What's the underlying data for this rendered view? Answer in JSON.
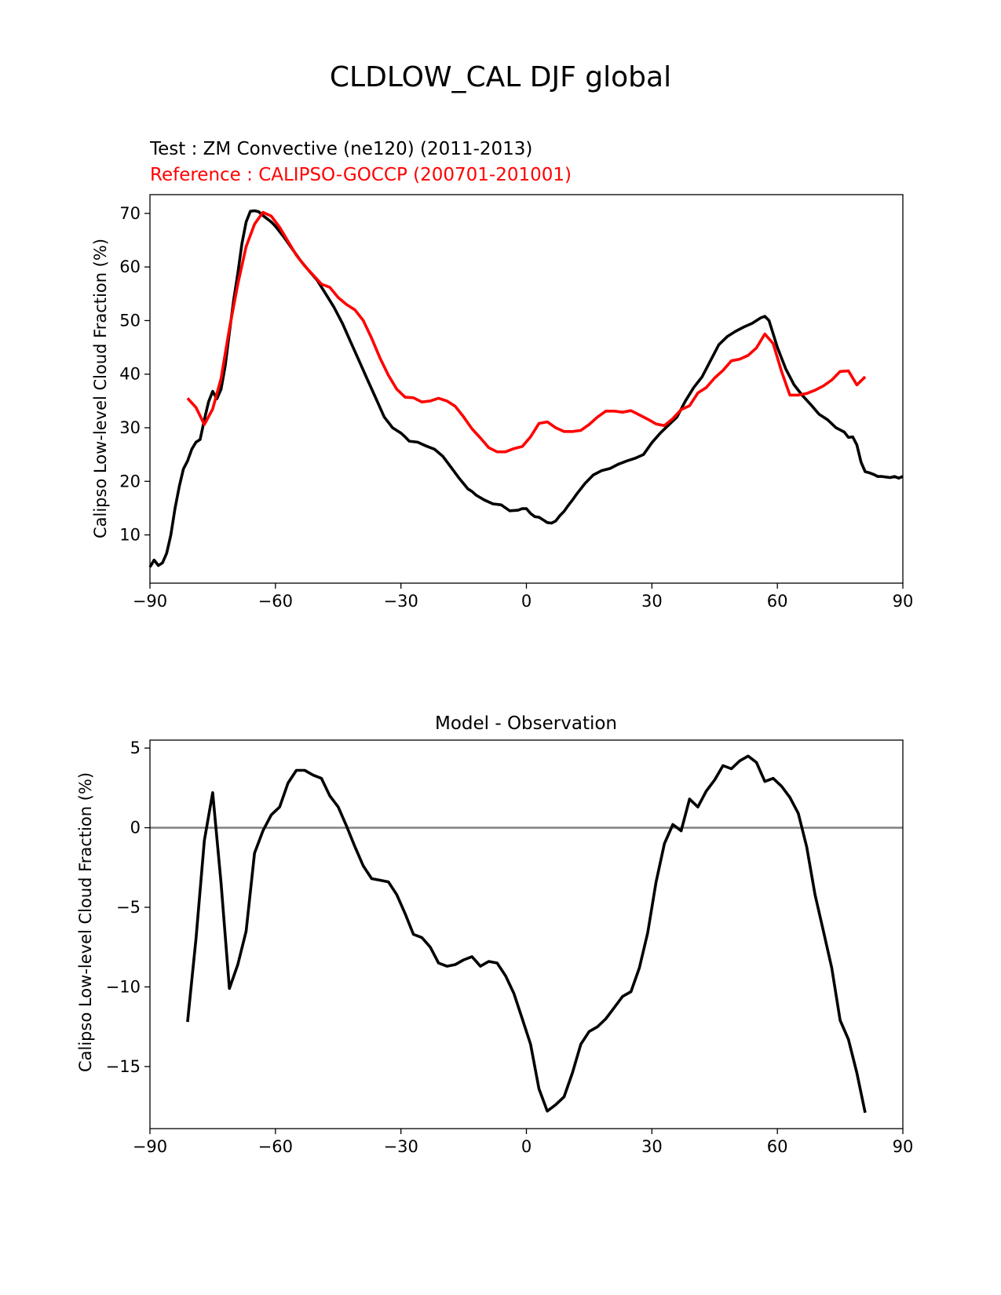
{
  "figure": {
    "title": "CLDLOW_CAL DJF global"
  },
  "colors": {
    "test": "#000000",
    "reference": "#ff0000",
    "zero_line": "#808080"
  },
  "chart_data": [
    {
      "type": "line",
      "title": "",
      "test_label": "Test : ZM Convective (ne120) (2011-2013)",
      "reference_label": "Reference : CALIPSO-GOCCP (200701-201001)",
      "xlabel": "",
      "ylabel": "Calipso Low-level Cloud Fraction (%)",
      "xlim": [
        -90,
        90
      ],
      "ylim": [
        1,
        73.5
      ],
      "xticks": [
        -90,
        -60,
        -30,
        0,
        30,
        60,
        90
      ],
      "xtick_labels": [
        "−90",
        "−60",
        "−30",
        "0",
        "30",
        "60",
        "90"
      ],
      "yticks": [
        10,
        20,
        30,
        40,
        50,
        60,
        70
      ],
      "ytick_labels": [
        "10",
        "20",
        "30",
        "40",
        "50",
        "60",
        "70"
      ],
      "series": [
        {
          "name": "Test : ZM Convective (ne120) (2011-2013)",
          "color": "#000000",
          "x": [
            -90,
            -89,
            -88,
            -87,
            -86,
            -85,
            -84,
            -83,
            -82,
            -81,
            -80,
            -79,
            -78,
            -77,
            -76,
            -75,
            -74,
            -73,
            -72,
            -71,
            -70,
            -69,
            -68,
            -67,
            -66,
            -65,
            -64,
            -63,
            -62,
            -61,
            -60,
            -58,
            -56,
            -54,
            -52,
            -50,
            -48,
            -46,
            -44,
            -42,
            -40,
            -38,
            -36,
            -34,
            -32,
            -30,
            -29,
            -28,
            -26,
            -24,
            -22,
            -20,
            -18,
            -16,
            -14,
            -13,
            -12,
            -10,
            -8,
            -6,
            -4,
            -2,
            -1,
            0,
            1,
            2,
            3,
            4,
            5,
            6,
            7,
            8,
            9,
            10,
            11,
            12,
            14,
            16,
            18,
            20,
            22,
            24,
            26,
            28,
            30,
            32,
            34,
            36,
            38,
            40,
            42,
            44,
            46,
            48,
            50,
            52,
            54,
            56,
            57,
            58,
            60,
            62,
            64,
            66,
            68,
            70,
            72,
            74,
            75,
            76,
            77,
            78,
            79,
            80,
            81,
            82,
            83,
            84,
            85,
            86,
            87,
            88,
            89,
            90
          ],
          "values": [
            4.0,
            5.3,
            4.3,
            4.8,
            6.6,
            10.0,
            15.0,
            19.0,
            22.3,
            23.8,
            26.0,
            27.3,
            27.8,
            31.5,
            34.8,
            36.8,
            35.4,
            37.2,
            41.6,
            47.8,
            53.8,
            58.8,
            64.4,
            68.4,
            70.4,
            70.5,
            70.3,
            69.6,
            69.0,
            68.4,
            67.6,
            65.6,
            63.4,
            61.2,
            59.3,
            57.5,
            55.0,
            52.5,
            49.5,
            46.0,
            42.5,
            39.0,
            35.5,
            32.0,
            30.0,
            29.0,
            28.3,
            27.5,
            27.3,
            26.6,
            26.0,
            24.7,
            22.6,
            20.5,
            18.6,
            18.1,
            17.4,
            16.5,
            15.8,
            15.6,
            14.5,
            14.6,
            14.9,
            14.9,
            14.0,
            13.4,
            13.3,
            12.8,
            12.3,
            12.2,
            12.6,
            13.6,
            14.4,
            15.5,
            16.5,
            17.6,
            19.6,
            21.2,
            22.0,
            22.4,
            23.2,
            23.8,
            24.3,
            25.0,
            27.2,
            29.0,
            30.5,
            32.0,
            35.0,
            37.5,
            39.5,
            42.5,
            45.5,
            47.0,
            48.0,
            48.8,
            49.5,
            50.5,
            50.8,
            50.0,
            45.0,
            41.0,
            38.0,
            36.0,
            34.3,
            32.5,
            31.5,
            30.0,
            29.6,
            29.2,
            28.2,
            28.3,
            26.8,
            23.6,
            21.8,
            21.6,
            21.3,
            20.9,
            20.9,
            20.8,
            20.7,
            20.9,
            20.6,
            20.9
          ]
        },
        {
          "name": "Reference : CALIPSO-GOCCP (200701-201001)",
          "color": "#ff0000",
          "x": [
            -81,
            -79,
            -77,
            -75,
            -73,
            -71,
            -69,
            -67,
            -65,
            -63,
            -61,
            -59,
            -57,
            -55,
            -53,
            -51,
            -49,
            -47,
            -45,
            -43,
            -41,
            -39,
            -37,
            -35,
            -33,
            -31,
            -29,
            -27,
            -25,
            -23,
            -21,
            -19,
            -17,
            -15,
            -13,
            -11,
            -9,
            -7,
            -5,
            -3,
            -1,
            1,
            3,
            5,
            7,
            9,
            11,
            13,
            15,
            17,
            19,
            21,
            23,
            25,
            27,
            29,
            31,
            33,
            35,
            37,
            39,
            41,
            43,
            45,
            47,
            49,
            51,
            53,
            55,
            57,
            59,
            61,
            63,
            65,
            67,
            69,
            71,
            73,
            75,
            77,
            79,
            81
          ],
          "values": [
            35.5,
            33.8,
            30.6,
            33.5,
            39.2,
            48.5,
            56.8,
            63.8,
            68.0,
            70.2,
            69.5,
            67.4,
            64.8,
            62.2,
            60.2,
            58.5,
            56.8,
            56.2,
            54.3,
            53.0,
            52.0,
            50.0,
            46.7,
            43.0,
            39.8,
            37.2,
            35.7,
            35.6,
            34.8,
            35.0,
            35.5,
            35.0,
            34.0,
            32.0,
            29.8,
            28.1,
            26.3,
            25.5,
            25.5,
            26.1,
            26.5,
            28.3,
            30.8,
            31.1,
            30.0,
            29.3,
            29.3,
            29.5,
            30.6,
            32.0,
            33.1,
            33.1,
            32.9,
            33.2,
            32.4,
            31.6,
            30.7,
            30.4,
            31.7,
            33.4,
            34.1,
            36.5,
            37.5,
            39.3,
            40.7,
            42.5,
            42.8,
            43.5,
            44.9,
            47.5,
            45.7,
            40.5,
            36.1,
            36.1,
            36.4,
            37.0,
            37.8,
            38.9,
            40.5,
            40.6,
            38.0,
            39.5
          ]
        }
      ]
    },
    {
      "type": "line",
      "title": "Model - Observation",
      "xlabel": "",
      "ylabel": "Calipso Low-level Cloud Fraction (%)",
      "xlim": [
        -90,
        90
      ],
      "ylim": [
        -18.9,
        5.5
      ],
      "xticks": [
        -90,
        -60,
        -30,
        0,
        30,
        60,
        90
      ],
      "xtick_labels": [
        "−90",
        "−60",
        "−30",
        "0",
        "30",
        "60",
        "90"
      ],
      "yticks": [
        -15,
        -10,
        -5,
        0,
        5
      ],
      "ytick_labels": [
        "−15",
        "−10",
        "−5",
        "0",
        "5"
      ],
      "zero_line": 0,
      "series": [
        {
          "color": "#000000",
          "x": [
            -81,
            -79,
            -77,
            -75,
            -73,
            -71,
            -69,
            -67,
            -65,
            -63,
            -61,
            -59,
            -57,
            -55,
            -53,
            -51,
            -49,
            -47,
            -45,
            -43,
            -41,
            -39,
            -37,
            -35,
            -33,
            -31,
            -29,
            -27,
            -25,
            -23,
            -21,
            -19,
            -17,
            -15,
            -13,
            -11,
            -9,
            -7,
            -5,
            -3,
            -1,
            1,
            3,
            5,
            7,
            9,
            11,
            13,
            15,
            17,
            19,
            21,
            23,
            25,
            27,
            29,
            31,
            33,
            35,
            37,
            39,
            41,
            43,
            45,
            47,
            49,
            51,
            53,
            55,
            57,
            59,
            61,
            63,
            65,
            67,
            69,
            71,
            73,
            75,
            77,
            79,
            81
          ],
          "values": [
            -12.2,
            -7.0,
            -0.8,
            2.2,
            -3.5,
            -10.1,
            -8.6,
            -6.5,
            -1.6,
            -0.2,
            0.8,
            1.3,
            2.8,
            3.6,
            3.6,
            3.3,
            3.1,
            2.0,
            1.3,
            0.1,
            -1.2,
            -2.4,
            -3.2,
            -3.3,
            -3.4,
            -4.2,
            -5.4,
            -6.7,
            -6.9,
            -7.5,
            -8.5,
            -8.7,
            -8.6,
            -8.3,
            -8.1,
            -8.7,
            -8.4,
            -8.5,
            -9.3,
            -10.4,
            -12.0,
            -13.6,
            -16.4,
            -17.8,
            -17.4,
            -16.9,
            -15.4,
            -13.6,
            -12.8,
            -12.5,
            -12.0,
            -11.3,
            -10.6,
            -10.3,
            -8.8,
            -6.6,
            -3.4,
            -1.0,
            0.2,
            -0.2,
            1.8,
            1.3,
            2.3,
            3.0,
            3.9,
            3.7,
            4.2,
            4.5,
            4.1,
            2.9,
            3.1,
            2.6,
            1.9,
            0.9,
            -1.2,
            -4.2,
            -6.5,
            -8.8,
            -12.1,
            -13.3,
            -15.4,
            -17.9
          ]
        }
      ]
    }
  ]
}
